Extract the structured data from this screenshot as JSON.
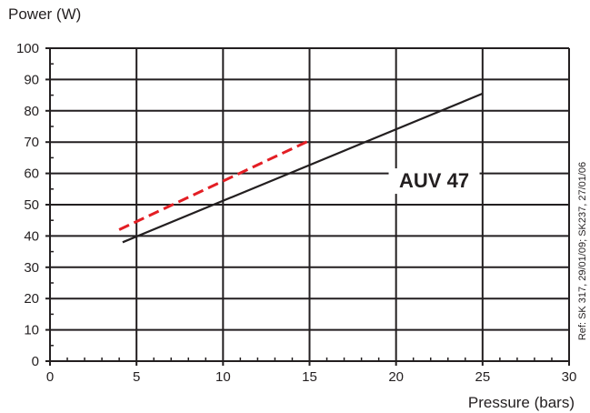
{
  "chart_data": {
    "type": "line",
    "title": "",
    "ylabel": "Power (W)",
    "xlabel": "Pressure (bars)",
    "xlim": [
      0,
      30
    ],
    "ylim": [
      0,
      100
    ],
    "x_ticks": [
      0,
      5,
      10,
      15,
      20,
      25,
      30
    ],
    "y_ticks": [
      0,
      10,
      20,
      30,
      40,
      50,
      60,
      70,
      80,
      90,
      100
    ],
    "grid": true,
    "series": [
      {
        "color": "#231f20",
        "dash": "solid",
        "points": [
          [
            4.2,
            38
          ],
          [
            25,
            85.5
          ]
        ]
      },
      {
        "color": "#e31e24",
        "dash": "dashed",
        "points": [
          [
            4,
            42
          ],
          [
            15,
            70.5
          ]
        ]
      }
    ],
    "annotations": [
      {
        "text": "AUV 47"
      }
    ],
    "side_note": "Ref: SK 317, 29/01/09; SK237, 27/01/06"
  }
}
